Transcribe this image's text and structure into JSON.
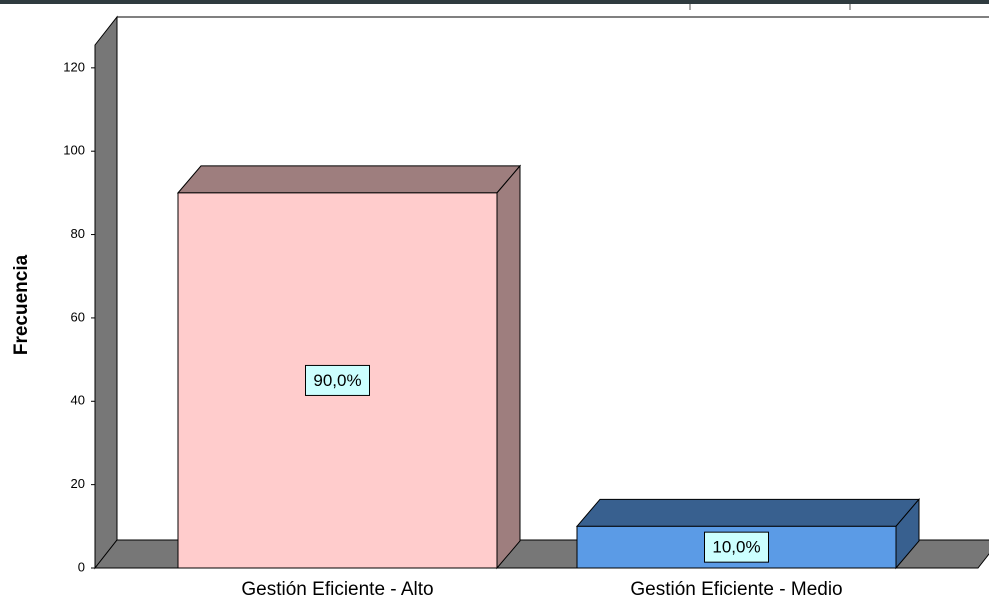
{
  "chart_data": {
    "type": "bar",
    "y_label": "Frecuencia",
    "categories": [
      "Gestión Eficiente - Alto",
      "Gestión Eficiente - Medio"
    ],
    "values": [
      90,
      10
    ],
    "value_labels": [
      "90,0%",
      "10,0%"
    ],
    "colors": [
      "#ffcccc",
      "#5b9be6"
    ],
    "ylim": [
      0,
      125
    ],
    "yticks": [
      0,
      20,
      40,
      60,
      80,
      100,
      120
    ]
  }
}
